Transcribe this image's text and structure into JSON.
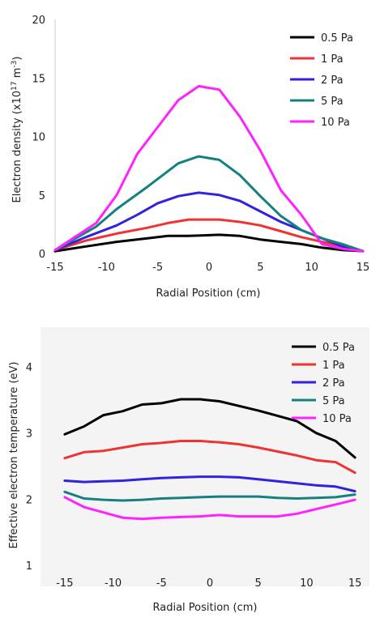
{
  "series_colors": [
    "#000000",
    "#ee3333",
    "#3322dd",
    "#158080",
    "#ff22ff"
  ],
  "chart_data": [
    {
      "type": "line",
      "title": "",
      "xlabel": "Radial Position (cm)",
      "ylabel_main": "Electron density (x10",
      "ylabel_exp1": "17",
      "ylabel_mid": " m",
      "ylabel_exp2": "-3",
      "ylabel_end": ")",
      "xlim": [
        -15,
        15
      ],
      "ylim": [
        0,
        20
      ],
      "xticks": [
        "-15",
        "-10",
        "-5",
        "0",
        "5",
        "10",
        "15"
      ],
      "yticks": [
        "0",
        "5",
        "10",
        "15",
        "20"
      ],
      "legend_position": "top-right",
      "grid": false,
      "series": [
        {
          "name": "0.5 Pa",
          "x": [
            -15,
            -12,
            -9,
            -6,
            -4,
            -2,
            1,
            3,
            5,
            7,
            9,
            11,
            13,
            15
          ],
          "y": [
            0.2,
            0.6,
            1.0,
            1.3,
            1.5,
            1.5,
            1.6,
            1.5,
            1.2,
            1.0,
            0.8,
            0.5,
            0.3,
            0.2
          ]
        },
        {
          "name": "1 Pa",
          "x": [
            -15,
            -12,
            -9,
            -6,
            -4,
            -2,
            1,
            3,
            5,
            7,
            9,
            11,
            13,
            15
          ],
          "y": [
            0.3,
            1.1,
            1.7,
            2.2,
            2.6,
            2.9,
            2.9,
            2.7,
            2.4,
            1.9,
            1.4,
            1.0,
            0.6,
            0.2
          ]
        },
        {
          "name": "2 Pa",
          "x": [
            -15,
            -12,
            -9,
            -7,
            -5,
            -3,
            -1,
            1,
            3,
            5,
            7,
            9,
            11,
            13,
            15
          ],
          "y": [
            0.3,
            1.4,
            2.4,
            3.3,
            4.3,
            4.9,
            5.2,
            5.0,
            4.5,
            3.6,
            2.7,
            2.0,
            1.3,
            0.6,
            0.2
          ]
        },
        {
          "name": "5 Pa",
          "x": [
            -15,
            -11,
            -9,
            -6,
            -3,
            -1,
            1,
            3,
            5,
            7,
            9,
            11,
            13,
            15
          ],
          "y": [
            0.3,
            2.3,
            3.8,
            5.7,
            7.7,
            8.3,
            8.0,
            6.7,
            4.9,
            3.2,
            2.0,
            1.3,
            0.8,
            0.2
          ]
        },
        {
          "name": "10 Pa",
          "x": [
            -15,
            -11,
            -9,
            -7,
            -5,
            -3,
            -1,
            1,
            3,
            5,
            7,
            9,
            11,
            13,
            15
          ],
          "y": [
            0.3,
            2.6,
            5.0,
            8.5,
            10.8,
            13.1,
            14.3,
            14.0,
            11.7,
            8.8,
            5.4,
            3.3,
            0.8,
            0.4,
            0.2
          ]
        }
      ]
    },
    {
      "type": "line",
      "title": "",
      "xlabel": "Radial Position (cm)",
      "ylabel": "Effective electron temperature (eV)",
      "xlim": [
        -17.5,
        16.5
      ],
      "ylim": [
        1,
        4.6
      ],
      "xticks": [
        "-15",
        "-10",
        "-5",
        "0",
        "5",
        "10",
        "15"
      ],
      "yticks": [
        "1",
        "2",
        "3",
        "4"
      ],
      "legend_position": "top-right",
      "grid": false,
      "series": [
        {
          "name": "0.5 Pa",
          "x": [
            -15,
            -13,
            -11,
            -9,
            -7,
            -5,
            -3,
            -1,
            1,
            3,
            5,
            7,
            9,
            11,
            13,
            15
          ],
          "y": [
            2.98,
            3.1,
            3.27,
            3.33,
            3.43,
            3.45,
            3.51,
            3.51,
            3.48,
            3.41,
            3.34,
            3.26,
            3.18,
            3.0,
            2.88,
            2.63
          ]
        },
        {
          "name": "1 Pa",
          "x": [
            -15,
            -13,
            -11,
            -9,
            -7,
            -5,
            -3,
            -1,
            1,
            3,
            5,
            7,
            9,
            11,
            13,
            15
          ],
          "y": [
            2.62,
            2.71,
            2.73,
            2.78,
            2.83,
            2.85,
            2.88,
            2.88,
            2.86,
            2.83,
            2.78,
            2.72,
            2.66,
            2.59,
            2.56,
            2.4
          ]
        },
        {
          "name": "2 Pa",
          "x": [
            -15,
            -13,
            -11,
            -9,
            -7,
            -5,
            -3,
            -1,
            1,
            3,
            5,
            7,
            9,
            11,
            13,
            15
          ],
          "y": [
            2.28,
            2.26,
            2.27,
            2.28,
            2.3,
            2.32,
            2.33,
            2.34,
            2.34,
            2.33,
            2.3,
            2.27,
            2.24,
            2.21,
            2.19,
            2.12
          ]
        },
        {
          "name": "5 Pa",
          "x": [
            -15,
            -13,
            -11,
            -9,
            -7,
            -5,
            -3,
            -1,
            1,
            3,
            5,
            7,
            9,
            11,
            13,
            15
          ],
          "y": [
            2.11,
            2.01,
            1.99,
            1.98,
            1.99,
            2.01,
            2.02,
            2.03,
            2.04,
            2.04,
            2.04,
            2.02,
            2.01,
            2.02,
            2.03,
            2.07
          ]
        },
        {
          "name": "10 Pa",
          "x": [
            -15,
            -13,
            -11,
            -9,
            -7,
            -5,
            -3,
            -1,
            1,
            3,
            5,
            7,
            9,
            11,
            13,
            15
          ],
          "y": [
            2.03,
            1.88,
            1.8,
            1.72,
            1.7,
            1.72,
            1.73,
            1.74,
            1.76,
            1.74,
            1.74,
            1.74,
            1.78,
            1.85,
            1.92,
            1.99
          ]
        }
      ]
    }
  ]
}
